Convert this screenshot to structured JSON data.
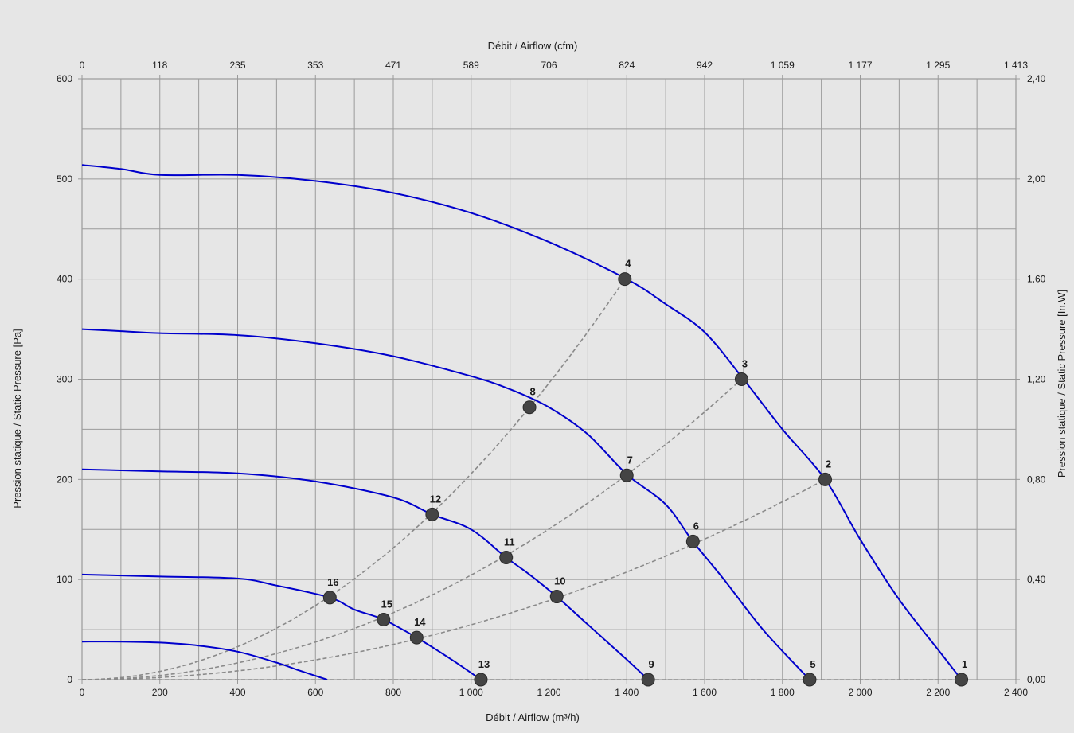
{
  "chart_data": {
    "type": "line",
    "xlabel_bottom": "Débit / Airflow (m³/h)",
    "xlabel_top": "Débit / Airflow (cfm)",
    "ylabel_left": "Pression statique / Static Pressure [Pa]",
    "ylabel_right": "Pression statique / Static Pressure [In.W]",
    "xlim": [
      0,
      2400
    ],
    "ylim": [
      0,
      600
    ],
    "x_ticks": [
      "0",
      "200",
      "400",
      "600",
      "800",
      "1 000",
      "1 200",
      "1 400",
      "1 600",
      "1 800",
      "2 000",
      "2 200",
      "2 400"
    ],
    "x_top_ticks": [
      "0",
      "118",
      "235",
      "353",
      "471",
      "589",
      "706",
      "824",
      "942",
      "1 059",
      "1 177",
      "1 295",
      "1 413"
    ],
    "y_ticks": [
      "0",
      "100",
      "200",
      "300",
      "400",
      "500",
      "600"
    ],
    "y_right_ticks": [
      "0,00",
      "0,40",
      "0,80",
      "1,20",
      "1,60",
      "2,00",
      "2,40"
    ],
    "grid": true,
    "fan_curves": [
      [
        [
          0,
          514
        ],
        [
          100,
          510
        ],
        [
          200,
          504
        ],
        [
          400,
          504
        ],
        [
          600,
          498
        ],
        [
          800,
          486
        ],
        [
          1000,
          466
        ],
        [
          1200,
          437
        ],
        [
          1400,
          400
        ],
        [
          1500,
          375
        ],
        [
          1600,
          347
        ],
        [
          1700,
          300
        ],
        [
          1800,
          250
        ],
        [
          1910,
          200
        ],
        [
          2000,
          140
        ],
        [
          2100,
          80
        ],
        [
          2200,
          30
        ],
        [
          2260,
          0
        ]
      ],
      [
        [
          0,
          350
        ],
        [
          100,
          348
        ],
        [
          200,
          346
        ],
        [
          400,
          344
        ],
        [
          600,
          336
        ],
        [
          800,
          323
        ],
        [
          1000,
          303
        ],
        [
          1100,
          290
        ],
        [
          1200,
          272
        ],
        [
          1300,
          245
        ],
        [
          1400,
          205
        ],
        [
          1500,
          175
        ],
        [
          1570,
          138
        ],
        [
          1650,
          100
        ],
        [
          1750,
          50
        ],
        [
          1870,
          0
        ]
      ],
      [
        [
          0,
          210
        ],
        [
          100,
          209
        ],
        [
          200,
          208
        ],
        [
          400,
          206
        ],
        [
          600,
          198
        ],
        [
          800,
          182
        ],
        [
          900,
          165
        ],
        [
          1000,
          150
        ],
        [
          1090,
          122
        ],
        [
          1150,
          105
        ],
        [
          1220,
          83
        ],
        [
          1300,
          55
        ],
        [
          1400,
          20
        ],
        [
          1455,
          0
        ]
      ],
      [
        [
          0,
          105
        ],
        [
          100,
          104
        ],
        [
          200,
          103
        ],
        [
          400,
          101
        ],
        [
          500,
          94
        ],
        [
          637,
          82
        ],
        [
          700,
          70
        ],
        [
          775,
          60
        ],
        [
          860,
          42
        ],
        [
          950,
          20
        ],
        [
          1025,
          0
        ]
      ],
      [
        [
          0,
          38
        ],
        [
          100,
          38
        ],
        [
          200,
          37
        ],
        [
          300,
          34
        ],
        [
          400,
          28
        ],
        [
          500,
          17
        ],
        [
          560,
          9
        ],
        [
          630,
          0
        ]
      ]
    ],
    "system_curves": [
      {
        "end": [
          1395,
          400
        ]
      },
      {
        "end": [
          1695,
          300
        ]
      },
      {
        "end": [
          1910,
          200
        ]
      },
      {
        "end": [
          2260,
          0
        ]
      }
    ],
    "points": [
      {
        "label": "1",
        "x": 2260,
        "y": 0
      },
      {
        "label": "2",
        "x": 1910,
        "y": 200
      },
      {
        "label": "3",
        "x": 1695,
        "y": 300
      },
      {
        "label": "4",
        "x": 1395,
        "y": 400
      },
      {
        "label": "5",
        "x": 1870,
        "y": 0
      },
      {
        "label": "6",
        "x": 1570,
        "y": 138
      },
      {
        "label": "7",
        "x": 1400,
        "y": 204
      },
      {
        "label": "8",
        "x": 1150,
        "y": 272
      },
      {
        "label": "9",
        "x": 1455,
        "y": 0
      },
      {
        "label": "10",
        "x": 1220,
        "y": 83
      },
      {
        "label": "11",
        "x": 1090,
        "y": 122
      },
      {
        "label": "12",
        "x": 900,
        "y": 165
      },
      {
        "label": "13",
        "x": 1025,
        "y": 0
      },
      {
        "label": "14",
        "x": 860,
        "y": 42
      },
      {
        "label": "15",
        "x": 775,
        "y": 60
      },
      {
        "label": "16",
        "x": 637,
        "y": 82
      }
    ],
    "colors": {
      "fan_curve": "#0000cc",
      "system_curve": "#8a8a8a",
      "point": "#444444",
      "grid": "#9a9a9a"
    }
  }
}
